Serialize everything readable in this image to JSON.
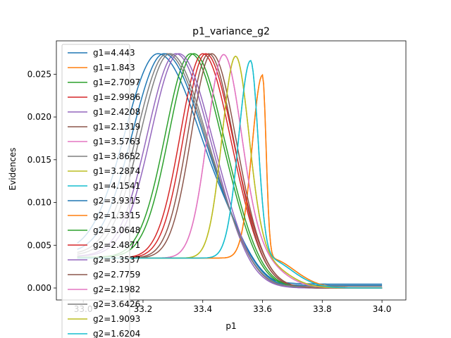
{
  "chart_data": {
    "type": "line",
    "title": "p1_variance_g2",
    "xlabel": "p1",
    "ylabel": "Evidences",
    "xlim": [
      32.91,
      34.08
    ],
    "ylim": [
      -0.0014,
      0.0289
    ],
    "xticks": [
      33.0,
      33.2,
      33.4,
      33.6,
      33.8,
      34.0
    ],
    "xtick_labels": [
      "33.0",
      "33.2",
      "33.4",
      "33.6",
      "33.8",
      "34.0"
    ],
    "yticks": [
      0.0,
      0.005,
      0.01,
      0.015,
      0.02,
      0.025
    ],
    "ytick_labels": [
      "0.000",
      "0.005",
      "0.010",
      "0.015",
      "0.020",
      "0.025"
    ],
    "legend_position": "upper-left",
    "series": [
      {
        "name": "g1=4.443",
        "color": "#1f77b4",
        "peak": 33.25,
        "wl": 0.11,
        "wr": 0.14,
        "pv": 0.0274,
        "base": 0.0041,
        "tail": 0.00045,
        "fall": 0.2
      },
      {
        "name": "g1=1.843",
        "color": "#ff7f0e",
        "peak": 33.6,
        "wl": 0.035,
        "wr": 0.012,
        "pv": 0.0249,
        "base": 0.0035,
        "tail": 0.0,
        "fall": 0.02
      },
      {
        "name": "g1=2.7097",
        "color": "#2ca02c",
        "peak": 33.36,
        "wl": 0.085,
        "wr": 0.1,
        "pv": 0.0274,
        "base": 0.0036,
        "tail": 0.0,
        "fall": 0.11
      },
      {
        "name": "g1=2.9986",
        "color": "#d62728",
        "peak": 33.4,
        "wl": 0.075,
        "wr": 0.09,
        "pv": 0.0274,
        "base": 0.0035,
        "tail": 0.0,
        "fall": 0.09
      },
      {
        "name": "g1=2.4208",
        "color": "#9467bd",
        "peak": 33.31,
        "wl": 0.095,
        "wr": 0.11,
        "pv": 0.0274,
        "base": 0.0037,
        "tail": 0.0,
        "fall": 0.12
      },
      {
        "name": "g1=2.1319",
        "color": "#8c564b",
        "peak": 33.42,
        "wl": 0.07,
        "wr": 0.08,
        "pv": 0.0274,
        "base": 0.0035,
        "tail": 0.0,
        "fall": 0.08
      },
      {
        "name": "g1=3.5763",
        "color": "#e377c2",
        "peak": 33.47,
        "wl": 0.055,
        "wr": 0.06,
        "pv": 0.0273,
        "base": 0.0035,
        "tail": 0.0,
        "fall": 0.1
      },
      {
        "name": "g1=3.8652",
        "color": "#7f7f7f",
        "peak": 33.28,
        "wl": 0.1,
        "wr": 0.125,
        "pv": 0.0274,
        "base": 0.0039,
        "tail": 0.0002,
        "fall": 0.16
      },
      {
        "name": "g1=3.2874",
        "color": "#bcbd22",
        "peak": 33.51,
        "wl": 0.045,
        "wr": 0.045,
        "pv": 0.0271,
        "base": 0.0035,
        "tail": 0.0,
        "fall": 0.07
      },
      {
        "name": "g1=4.1541",
        "color": "#17becf",
        "peak": 33.56,
        "wl": 0.04,
        "wr": 0.025,
        "pv": 0.0266,
        "base": 0.0035,
        "tail": 0.0,
        "fall": 0.05
      },
      {
        "name": "g2=3.9315",
        "color": "#1f77b4",
        "peak": 33.27,
        "wl": 0.105,
        "wr": 0.13,
        "pv": 0.0274,
        "base": 0.004,
        "tail": 0.0003,
        "fall": 0.18
      },
      {
        "name": "g2=1.3315",
        "color": "#ff7f0e",
        "peak": 33.6,
        "wl": 0.035,
        "wr": 0.012,
        "pv": 0.0249,
        "base": 0.0035,
        "tail": 0.0,
        "fall": 0.02
      },
      {
        "name": "g2=3.0648",
        "color": "#2ca02c",
        "peak": 33.37,
        "wl": 0.083,
        "wr": 0.098,
        "pv": 0.0274,
        "base": 0.0036,
        "tail": 0.0,
        "fall": 0.11
      },
      {
        "name": "g2=2.4871",
        "color": "#d62728",
        "peak": 33.41,
        "wl": 0.073,
        "wr": 0.088,
        "pv": 0.0274,
        "base": 0.0035,
        "tail": 0.0,
        "fall": 0.09
      },
      {
        "name": "g2=3.3537",
        "color": "#9467bd",
        "peak": 33.32,
        "wl": 0.093,
        "wr": 0.108,
        "pv": 0.0274,
        "base": 0.0037,
        "tail": 0.0,
        "fall": 0.12
      },
      {
        "name": "g2=2.7759",
        "color": "#8c564b",
        "peak": 33.43,
        "wl": 0.068,
        "wr": 0.078,
        "pv": 0.0274,
        "base": 0.0035,
        "tail": 0.0,
        "fall": 0.08
      },
      {
        "name": "g2=2.1982",
        "color": "#e377c2",
        "peak": 33.47,
        "wl": 0.055,
        "wr": 0.06,
        "pv": 0.0273,
        "base": 0.0035,
        "tail": 0.0,
        "fall": 0.1
      },
      {
        "name": "g2=3.6426",
        "color": "#7f7f7f",
        "peak": 33.29,
        "wl": 0.098,
        "wr": 0.12,
        "pv": 0.0274,
        "base": 0.0038,
        "tail": 0.0002,
        "fall": 0.15
      },
      {
        "name": "g2=1.9093",
        "color": "#bcbd22",
        "peak": 33.51,
        "wl": 0.045,
        "wr": 0.045,
        "pv": 0.0271,
        "base": 0.0035,
        "tail": 0.0,
        "fall": 0.07
      },
      {
        "name": "g2=1.6204",
        "color": "#17becf",
        "peak": 33.56,
        "wl": 0.04,
        "wr": 0.025,
        "pv": 0.0266,
        "base": 0.0035,
        "tail": 0.0,
        "fall": 0.05
      }
    ]
  }
}
